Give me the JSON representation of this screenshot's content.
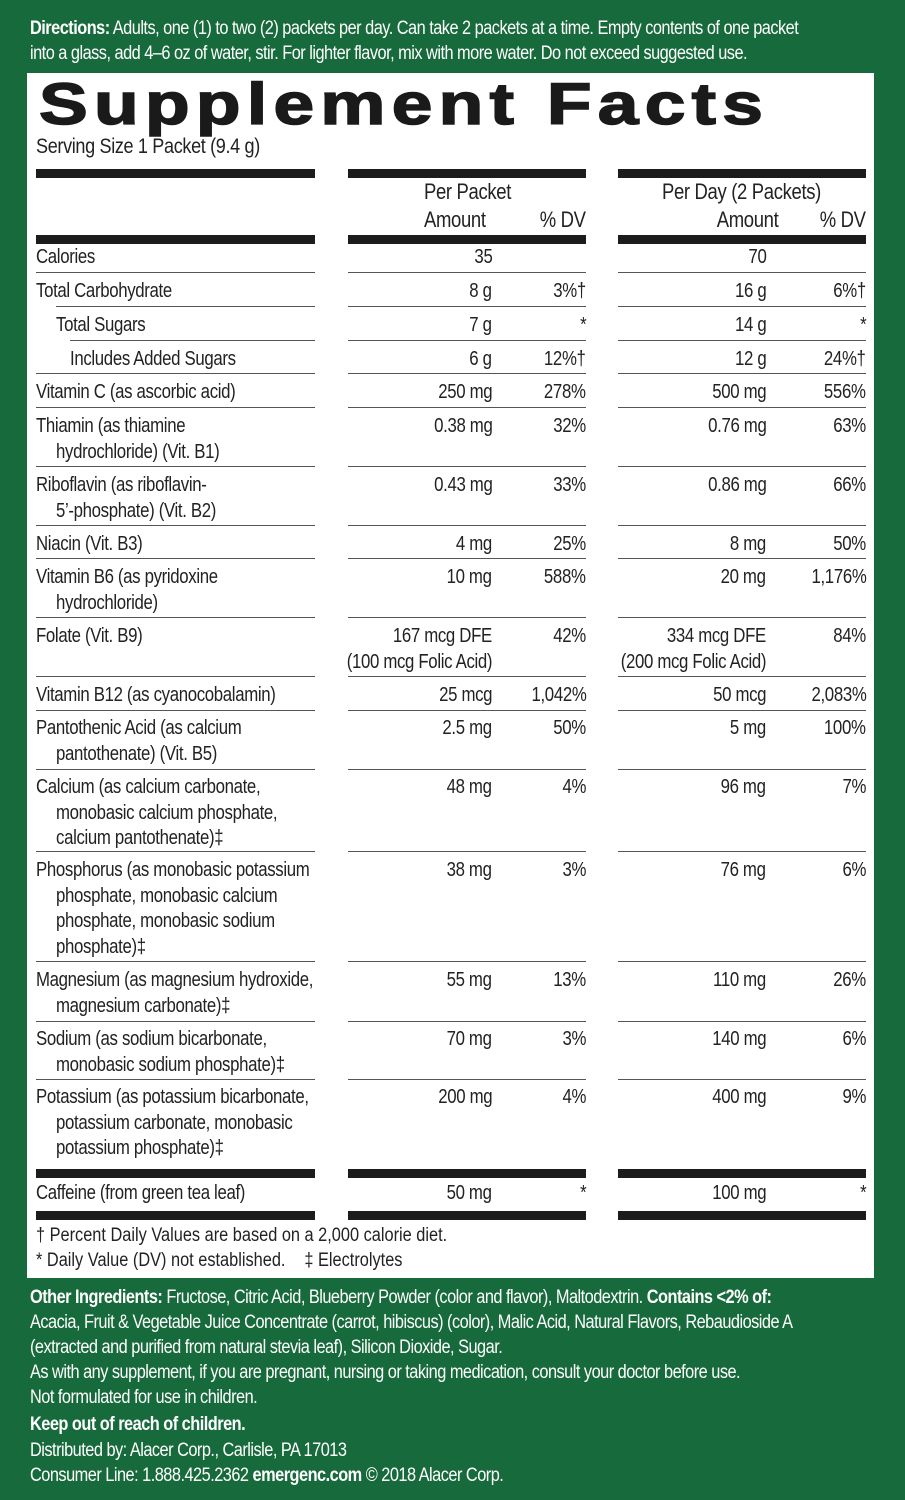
{
  "directions": {
    "label": "Directions:",
    "line1": " Adults, one (1) to two (2) packets per day. Can take 2 packets at a time. Empty contents of one packet",
    "line2": "into a glass, add 4–6 oz of water, stir. For lighter flavor, mix with more water. Do not exceed suggested use."
  },
  "panel": {
    "title": "Supplement Facts",
    "serving_size": "Serving Size 1 Packet (9.4 g)",
    "headers": {
      "per_packet": "Per Packet",
      "per_day": "Per Day (2 Packets)",
      "amount": "Amount",
      "dv": "% DV"
    },
    "rows": [
      {
        "name": "Calories",
        "pp_amount": "35",
        "pp_dv": "",
        "pd_amount": "70",
        "pd_dv": ""
      },
      {
        "name": "Total Carbohydrate",
        "pp_amount": "8 g",
        "pp_dv": "3%†",
        "pd_amount": "16 g",
        "pd_dv": "6%†"
      },
      {
        "name": "Total Sugars",
        "pp_amount": "7 g",
        "pp_dv": "*",
        "pd_amount": "14 g",
        "pd_dv": "*"
      },
      {
        "name": "Includes Added Sugars",
        "pp_amount": "6 g",
        "pp_dv": "12%†",
        "pd_amount": "12 g",
        "pd_dv": "24%†"
      },
      {
        "name": "Vitamin C (as ascorbic acid)",
        "pp_amount": "250 mg",
        "pp_dv": "278%",
        "pd_amount": "500 mg",
        "pd_dv": "556%"
      },
      {
        "name": "Thiamin (as thiamine",
        "name2": "hydrochloride) (Vit. B1)",
        "pp_amount": "0.38 mg",
        "pp_dv": "32%",
        "pd_amount": "0.76 mg",
        "pd_dv": "63%"
      },
      {
        "name": "Riboflavin (as riboflavin-",
        "name2": "5’-phosphate) (Vit. B2)",
        "pp_amount": "0.43 mg",
        "pp_dv": "33%",
        "pd_amount": "0.86 mg",
        "pd_dv": "66%"
      },
      {
        "name": "Niacin (Vit. B3)",
        "pp_amount": "4 mg",
        "pp_dv": "25%",
        "pd_amount": "8 mg",
        "pd_dv": "50%"
      },
      {
        "name": "Vitamin B6 (as pyridoxine",
        "name2": "hydrochloride)",
        "pp_amount": "10 mg",
        "pp_dv": "588%",
        "pd_amount": "20 mg",
        "pd_dv": "1,176%"
      },
      {
        "name": "Folate (Vit. B9)",
        "pp_amount": "167 mcg DFE",
        "pp_amount2": "(100 mcg Folic Acid)",
        "pp_dv": "42%",
        "pd_amount": "334 mcg DFE",
        "pd_amount2": "(200 mcg Folic Acid)",
        "pd_dv": "84%"
      },
      {
        "name": "Vitamin B12 (as cyanocobalamin)",
        "pp_amount": "25 mcg",
        "pp_dv": "1,042%",
        "pd_amount": "50 mcg",
        "pd_dv": "2,083%"
      },
      {
        "name": "Pantothenic Acid (as calcium",
        "name2": "pantothenate) (Vit. B5)",
        "pp_amount": "2.5 mg",
        "pp_dv": "50%",
        "pd_amount": "5 mg",
        "pd_dv": "100%"
      },
      {
        "name": "Calcium (as calcium carbonate,",
        "name2": "monobasic calcium  phosphate,",
        "name3": "calcium pantothenate)‡",
        "pp_amount": "48 mg",
        "pp_dv": "4%",
        "pd_amount": "96 mg",
        "pd_dv": "7%"
      },
      {
        "name": "Phosphorus (as monobasic potassium",
        "name2": "phosphate, monobasic calcium",
        "name3": "phosphate, monobasic sodium",
        "name4": "phosphate)‡",
        "pp_amount": "38 mg",
        "pp_dv": "3%",
        "pd_amount": "76 mg",
        "pd_dv": "6%"
      },
      {
        "name": "Magnesium (as magnesium hydroxide,",
        "name2": "magnesium carbonate)‡",
        "pp_amount": "55 mg",
        "pp_dv": "13%",
        "pd_amount": "110 mg",
        "pd_dv": "26%"
      },
      {
        "name": "Sodium (as sodium bicarbonate,",
        "name2": "monobasic sodium phosphate)‡",
        "pp_amount": "70 mg",
        "pp_dv": "3%",
        "pd_amount": "140 mg",
        "pd_dv": "6%"
      },
      {
        "name": "Potassium (as potassium bicarbonate,",
        "name2": "potassium carbonate, monobasic",
        "name3": "potassium phosphate)‡",
        "pp_amount": "200 mg",
        "pp_dv": "4%",
        "pd_amount": "400 mg",
        "pd_dv": "9%"
      },
      {
        "name": "Caffeine (from green tea leaf)",
        "pp_amount": "50 mg",
        "pp_dv": "*",
        "pd_amount": "100 mg",
        "pd_dv": "*"
      }
    ],
    "footnotes": {
      "dagger": "† Percent Daily Values are based on a 2,000 calorie diet.",
      "asterisk": "* Daily Value (DV) not established.",
      "double_dagger": "‡ Electrolytes"
    }
  },
  "ingredients": {
    "label": "Other Ingredients:",
    "text1": " Fructose, Citric Acid, Blueberry Powder (color and flavor), Maltodextrin. ",
    "contains_label": "Contains <2% of:",
    "line2": "Acacia, Fruit & Vegetable Juice Concentrate (carrot, hibiscus) (color), Malic Acid, Natural Flavors, Rebaudioside A",
    "line3": "(extracted and purified from natural stevia leaf), Silicon Dioxide, Sugar."
  },
  "warnings": {
    "line1": "As with any supplement, if you are pregnant, nursing or taking medication, consult your doctor before use.",
    "line2": "Not formulated for use in children.",
    "keep_out": "Keep out of reach of children."
  },
  "distributor": {
    "distributed_by": "Distributed by: Alacer Corp., Carlisle, PA 17013",
    "consumer_line": "Consumer Line: 1.888.425.2362 ",
    "website": "emergenc.com",
    "copyright": "  © 2018 Alacer Corp."
  },
  "colors": {
    "background_green": "#176a3b",
    "panel_white": "#ffffff",
    "rule_black": "#1c1c1c"
  }
}
